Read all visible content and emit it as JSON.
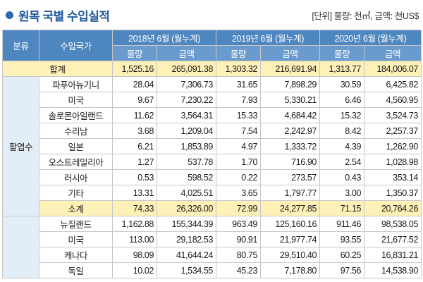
{
  "header": {
    "title": "원목 국별 수입실적",
    "unit_note": "[단위] 물량: 천㎥, 금액: 천US$"
  },
  "table": {
    "col_category": "분류",
    "col_country": "수입국가",
    "periods": [
      "2018년 6월 (월누계)",
      "2019년 6월 (월누계)",
      "2020년 6월 (월누계)"
    ],
    "sub_volume": "물량",
    "sub_amount": "금액",
    "total_row": {
      "label": "합계",
      "values": [
        "1,525.16",
        "265,091.38",
        "1,303.32",
        "216,691.94",
        "1,313.77",
        "184,006.07"
      ]
    },
    "group1": {
      "category": "활엽수",
      "rows": [
        {
          "country": "파푸아뉴기니",
          "values": [
            "28.04",
            "7,306.73",
            "31.65",
            "7,898.29",
            "30.59",
            "6,425.82"
          ]
        },
        {
          "country": "미국",
          "values": [
            "9.67",
            "7,230.22",
            "7.93",
            "5,330.21",
            "6.46",
            "4,560.95"
          ]
        },
        {
          "country": "솔로몬아일랜드",
          "values": [
            "11.62",
            "3,564.31",
            "15.33",
            "4,684.42",
            "15.32",
            "3,524.73"
          ]
        },
        {
          "country": "수리남",
          "values": [
            "3.68",
            "1,209.04",
            "7.54",
            "2,242.97",
            "8.42",
            "2,257.37"
          ]
        },
        {
          "country": "일본",
          "values": [
            "6.21",
            "1,853.89",
            "4.97",
            "1,333.72",
            "4.39",
            "1,262.90"
          ]
        },
        {
          "country": "오스트레일리아",
          "values": [
            "1.27",
            "537.78",
            "1.70",
            "716.90",
            "2.54",
            "1,028.98"
          ]
        },
        {
          "country": "러시아",
          "values": [
            "0.53",
            "598.52",
            "0.22",
            "273.57",
            "0.43",
            "353.14"
          ]
        },
        {
          "country": "기타",
          "values": [
            "13.31",
            "4,025.51",
            "3.65",
            "1,797.77",
            "3.00",
            "1,350.37"
          ]
        }
      ],
      "subtotal": {
        "label": "소계",
        "values": [
          "74.33",
          "26,326.00",
          "72.99",
          "24,277.85",
          "71.15",
          "20,764.26"
        ]
      }
    },
    "group2": {
      "rows": [
        {
          "country": "뉴질랜드",
          "values": [
            "1,162.88",
            "155,344.39",
            "963.49",
            "125,160.16",
            "911.46",
            "98,538.05"
          ]
        },
        {
          "country": "미국",
          "values": [
            "113.00",
            "29,182.53",
            "90.91",
            "21,977.74",
            "93.55",
            "21,677.52"
          ]
        },
        {
          "country": "캐나다",
          "values": [
            "98.09",
            "41,644.24",
            "80.75",
            "29,510.40",
            "60.25",
            "16,831.21"
          ]
        },
        {
          "country": "독일",
          "values": [
            "10.02",
            "1,534.55",
            "45.23",
            "7,178.80",
            "97.56",
            "14,538.90"
          ]
        }
      ]
    }
  }
}
